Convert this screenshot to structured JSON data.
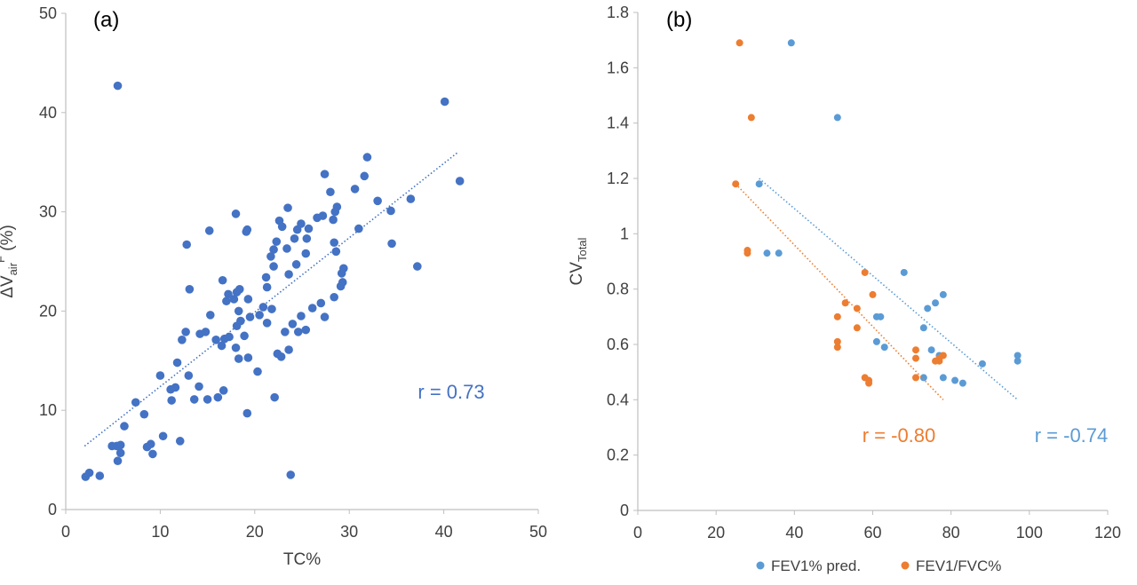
{
  "colors": {
    "blue": "#4472c4",
    "light_blue": "#5b9bd5",
    "orange": "#ed7d31",
    "axis": "#bfbfbf",
    "text": "#404040"
  },
  "chart_data": [
    {
      "type": "scatter",
      "panel_label": "(a)",
      "xlabel": "TC%",
      "ylabel": {
        "prefix": "ΔV",
        "sub": "air",
        "sup": "F",
        "suffix": " (%)"
      },
      "xlim": [
        0,
        50
      ],
      "ylim": [
        0,
        50
      ],
      "xticks": [
        "0",
        "10",
        "20",
        "30",
        "40",
        "50"
      ],
      "yticks": [
        "0",
        "10",
        "20",
        "30",
        "40",
        "50"
      ],
      "grid": false,
      "annotation": "r = 0.73",
      "series": [
        {
          "color": "#4472c4",
          "trendline": {
            "x": [
              2,
              41.5
            ],
            "y": [
              6.4,
              36.0
            ],
            "style": "dotted"
          },
          "points": [
            [
              5.5,
              42.7
            ],
            [
              40.1,
              41.1
            ],
            [
              41.7,
              33.1
            ],
            [
              37.2,
              24.5
            ],
            [
              36.5,
              31.3
            ],
            [
              34.4,
              30.1
            ],
            [
              34.5,
              26.8
            ],
            [
              33.0,
              31.1
            ],
            [
              31.9,
              35.5
            ],
            [
              31.6,
              33.6
            ],
            [
              30.6,
              32.3
            ],
            [
              31.0,
              28.3
            ],
            [
              28.5,
              30.0
            ],
            [
              28.7,
              30.5
            ],
            [
              28.3,
              29.2
            ],
            [
              27.2,
              29.6
            ],
            [
              27.4,
              33.8
            ],
            [
              28.0,
              32.0
            ],
            [
              28.4,
              26.9
            ],
            [
              28.6,
              26.0
            ],
            [
              29.2,
              23.8
            ],
            [
              29.4,
              24.3
            ],
            [
              29.3,
              22.9
            ],
            [
              29.1,
              22.5
            ],
            [
              28.4,
              21.4
            ],
            [
              27.4,
              19.4
            ],
            [
              27.0,
              20.8
            ],
            [
              26.1,
              20.3
            ],
            [
              26.6,
              29.4
            ],
            [
              25.7,
              28.3
            ],
            [
              25.5,
              27.3
            ],
            [
              25.4,
              25.8
            ],
            [
              24.5,
              28.2
            ],
            [
              24.9,
              28.8
            ],
            [
              24.2,
              27.3
            ],
            [
              23.5,
              30.4
            ],
            [
              23.4,
              26.3
            ],
            [
              24.4,
              24.7
            ],
            [
              23.6,
              23.7
            ],
            [
              22.9,
              28.5
            ],
            [
              22.3,
              27.0
            ],
            [
              22.0,
              26.2
            ],
            [
              22.6,
              29.1
            ],
            [
              21.7,
              25.5
            ],
            [
              21.2,
              23.4
            ],
            [
              22.0,
              24.5
            ],
            [
              21.3,
              22.4
            ],
            [
              21.8,
              20.2
            ],
            [
              20.9,
              20.4
            ],
            [
              20.5,
              19.6
            ],
            [
              21.3,
              18.8
            ],
            [
              24.9,
              19.5
            ],
            [
              25.4,
              18.1
            ],
            [
              24.6,
              17.9
            ],
            [
              24.0,
              18.7
            ],
            [
              23.6,
              16.1
            ],
            [
              23.2,
              17.9
            ],
            [
              22.8,
              15.4
            ],
            [
              22.4,
              15.7
            ],
            [
              22.1,
              11.3
            ],
            [
              20.3,
              13.9
            ],
            [
              19.2,
              28.2
            ],
            [
              19.1,
              28.0
            ],
            [
              18.0,
              29.8
            ],
            [
              18.4,
              22.2
            ],
            [
              18.1,
              21.9
            ],
            [
              19.3,
              21.2
            ],
            [
              17.8,
              21.2
            ],
            [
              16.6,
              23.1
            ],
            [
              17.2,
              21.7
            ],
            [
              17.0,
              21.0
            ],
            [
              18.3,
              20.0
            ],
            [
              18.5,
              19.0
            ],
            [
              18.1,
              18.5
            ],
            [
              19.5,
              19.4
            ],
            [
              18.9,
              17.5
            ],
            [
              17.3,
              17.4
            ],
            [
              16.8,
              17.2
            ],
            [
              15.9,
              17.1
            ],
            [
              16.5,
              16.5
            ],
            [
              18.0,
              16.3
            ],
            [
              18.3,
              15.2
            ],
            [
              19.3,
              15.3
            ],
            [
              15.2,
              28.1
            ],
            [
              12.8,
              26.7
            ],
            [
              13.1,
              22.2
            ],
            [
              15.3,
              19.6
            ],
            [
              14.8,
              17.9
            ],
            [
              14.2,
              17.7
            ],
            [
              12.7,
              17.9
            ],
            [
              12.3,
              17.1
            ],
            [
              11.8,
              14.8
            ],
            [
              13.0,
              13.5
            ],
            [
              14.1,
              12.4
            ],
            [
              11.6,
              12.3
            ],
            [
              11.1,
              12.1
            ],
            [
              11.2,
              11.0
            ],
            [
              13.6,
              11.1
            ],
            [
              15.0,
              11.1
            ],
            [
              16.7,
              12.0
            ],
            [
              16.1,
              11.3
            ],
            [
              19.2,
              9.7
            ],
            [
              10.0,
              13.5
            ],
            [
              7.4,
              10.8
            ],
            [
              8.3,
              9.6
            ],
            [
              10.3,
              7.4
            ],
            [
              9.0,
              6.6
            ],
            [
              8.6,
              6.3
            ],
            [
              9.2,
              5.6
            ],
            [
              12.1,
              6.9
            ],
            [
              6.2,
              8.4
            ],
            [
              5.8,
              6.5
            ],
            [
              5.4,
              6.4
            ],
            [
              4.9,
              6.4
            ],
            [
              5.8,
              5.7
            ],
            [
              5.5,
              4.9
            ],
            [
              2.5,
              3.7
            ],
            [
              2.1,
              3.3
            ],
            [
              3.6,
              3.4
            ],
            [
              23.8,
              3.5
            ]
          ]
        }
      ]
    },
    {
      "type": "scatter",
      "panel_label": "(b)",
      "xlabel": "",
      "ylabel": {
        "prefix": "CV",
        "sub": "Total"
      },
      "xlim": [
        0,
        120
      ],
      "ylim": [
        0,
        1.8
      ],
      "xticks": [
        "0",
        "20",
        "40",
        "60",
        "80",
        "100",
        "120"
      ],
      "yticks": [
        "0",
        "0.2",
        "0.4",
        "0.6",
        "0.8",
        "1",
        "1.2",
        "1.4",
        "1.6",
        "1.8"
      ],
      "grid": false,
      "legend_position": "bottom",
      "series": [
        {
          "name": "FEV1% pred.",
          "color": "#5b9bd5",
          "annotation": "r = -0.74",
          "trendline": {
            "x": [
              31,
              97
            ],
            "y": [
              1.2,
              0.4
            ],
            "style": "dotted"
          },
          "points": [
            [
              39.2,
              1.69
            ],
            [
              51.0,
              1.42
            ],
            [
              31.0,
              1.18
            ],
            [
              33.0,
              0.93
            ],
            [
              36.0,
              0.93
            ],
            [
              68.0,
              0.86
            ],
            [
              78.0,
              0.78
            ],
            [
              76.0,
              0.75
            ],
            [
              74.0,
              0.73
            ],
            [
              61.0,
              0.7
            ],
            [
              62.0,
              0.7
            ],
            [
              73.0,
              0.66
            ],
            [
              61.0,
              0.61
            ],
            [
              63.0,
              0.59
            ],
            [
              75.0,
              0.58
            ],
            [
              77.0,
              0.56
            ],
            [
              97.0,
              0.56
            ],
            [
              97.0,
              0.54
            ],
            [
              88.0,
              0.53
            ],
            [
              78.0,
              0.48
            ],
            [
              73.0,
              0.48
            ],
            [
              81.0,
              0.47
            ],
            [
              83.0,
              0.46
            ]
          ]
        },
        {
          "name": "FEV1/FVC%",
          "color": "#ed7d31",
          "annotation": "r = -0.80",
          "trendline": {
            "x": [
              25,
              78
            ],
            "y": [
              1.18,
              0.4
            ],
            "style": "dotted"
          },
          "points": [
            [
              26.0,
              1.69
            ],
            [
              29.0,
              1.42
            ],
            [
              25.0,
              1.18
            ],
            [
              28.0,
              0.93
            ],
            [
              28.0,
              0.94
            ],
            [
              58.0,
              0.86
            ],
            [
              60.0,
              0.78
            ],
            [
              53.0,
              0.75
            ],
            [
              56.0,
              0.73
            ],
            [
              51.0,
              0.7
            ],
            [
              56.0,
              0.66
            ],
            [
              51.0,
              0.61
            ],
            [
              51.0,
              0.59
            ],
            [
              71.0,
              0.58
            ],
            [
              78.0,
              0.56
            ],
            [
              77.0,
              0.55
            ],
            [
              71.0,
              0.55
            ],
            [
              77.0,
              0.54
            ],
            [
              76.0,
              0.54
            ],
            [
              58.0,
              0.48
            ],
            [
              71.0,
              0.48
            ],
            [
              59.0,
              0.47
            ],
            [
              59.0,
              0.46
            ]
          ]
        }
      ]
    }
  ]
}
